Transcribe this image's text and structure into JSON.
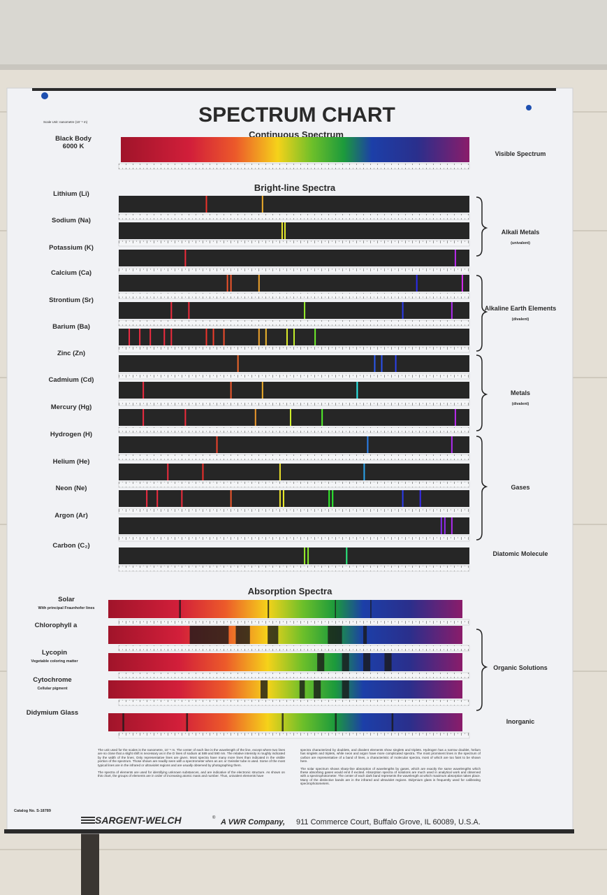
{
  "header": {
    "scale_unit": "Scale Unit: nanometre (10⁻⁹ m)",
    "title": "SPECTRUM CHART"
  },
  "continuous": {
    "heading": "Continuous  Spectrum",
    "rows": [
      {
        "label": "Black Body",
        "sublabel": "6000 K"
      }
    ]
  },
  "bright_line": {
    "heading": "Bright-line  Spectra",
    "rows": [
      {
        "label": "Lithium (Li)"
      },
      {
        "label": "Sodium (Na)"
      },
      {
        "label": "Potassium (K)"
      },
      {
        "label": "Calcium (Ca)"
      },
      {
        "label": "Strontium (Sr)"
      },
      {
        "label": "Barium (Ba)"
      },
      {
        "label": "Zinc (Zn)"
      },
      {
        "label": "Cadmium (Cd)"
      },
      {
        "label": "Mercury (Hg)"
      },
      {
        "label": "Hydrogen (H)"
      },
      {
        "label": "Helium (He)"
      },
      {
        "label": "Neon (Ne)"
      },
      {
        "label": "Argon (Ar)"
      },
      {
        "label": "Carbon (C₂)"
      }
    ]
  },
  "absorption": {
    "heading": "Absorption  Spectra",
    "rows": [
      {
        "label": "Solar",
        "sublabel": "With principal Fraunhofer lines"
      },
      {
        "label": "Chlorophyll  a"
      },
      {
        "label": "Lycopin",
        "sublabel": "Vegetable coloring matter"
      },
      {
        "label": "Cytochrome",
        "sublabel": "Cellular pigment"
      },
      {
        "label": "Didymium Glass"
      }
    ]
  },
  "groups": [
    {
      "label": "Visible Spectrum"
    },
    {
      "label": "Alkali Metals",
      "sublabel": "(univalent)"
    },
    {
      "label": "Alkaline Earth Elements",
      "sublabel": "(divalent)"
    },
    {
      "label": "Metals",
      "sublabel": "(divalent)"
    },
    {
      "label": "Gases"
    },
    {
      "label": "Diatomic Molecule"
    },
    {
      "label": "Organic Solutions"
    },
    {
      "label": "Inorganic"
    }
  ],
  "notes": {
    "left": [
      "The unit used for the scales is the nanometre, 10⁻⁹ m. The center of each line is the wavelength of the line, except where two lines are so close that a slight shift is necessary as in the D lines of sodium at 589 and 590 nm. The relative intensity is roughly indicated by the width of the lines. Only representative lines are given. Most spectra have many more lines than indicated in the visible portion of the spectrum. Those shown are readily seen with a spectrometer when an arc or Geissler tube is used. Some of the most typical lines are in the infrared or ultraviolet regions and are usually observed by photographing them.",
      "The spectra of elements are used for identifying unknown substances, and are indicative of the electronic structure. As shown on this chart, the groups of elements are in order of increasing atomic mass and number. Thus, univalent elements have"
    ],
    "right": [
      "spectra characterized by doublets, and divalent elements show singlets and triplets. Hydrogen has a narrow doublet, helium has singlets and triplets, while neon and argon have more complicated spectra. The most prominent lines in the spectrum of carbon are representative of a band of lines, a characteristic of molecular spectra, most of which are too faint to be shown here.",
      "The solar spectrum shows sharp-line absorption of wavelengths by gases, which are exactly the same wavelengths which these absorbing gases would emit if excited. Absorption spectra of solutions are much used in analytical work and observed with a spectrophotometer. The center of each dark band represents the wavelength at which maximum absorption takes place. Many of the distinctive bands are in the infrared and ultraviolet regions. Didymium glass is frequently used for calibrating spectrophotometers."
    ]
  },
  "footer": {
    "catalog": "Catalog No. S-18789",
    "brand": "SARGENT-WELCH",
    "registered": "®",
    "company": "A VWR Company,",
    "address": "911 Commerce Court, Buffalo Grove, IL 60089, U.S.A."
  }
}
